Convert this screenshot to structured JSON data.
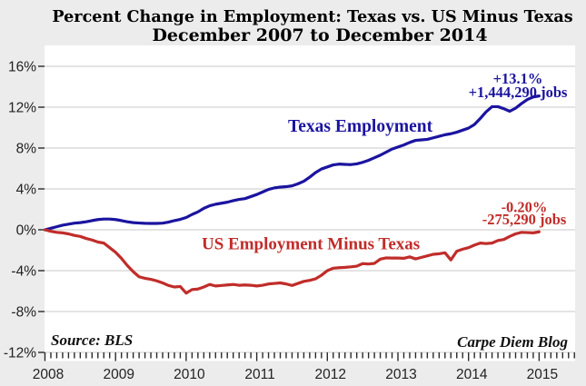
{
  "page": {
    "background": "#ececec",
    "plot_background": "#ffffff"
  },
  "chart_data": {
    "type": "line",
    "title": "Percent Change in Employment: Texas vs. US Minus Texas",
    "subtitle": "December 2007 to December 2014",
    "x_tick_labels": [
      "2008",
      "2009",
      "2010",
      "2011",
      "2012",
      "2013",
      "2014",
      "2015"
    ],
    "y_tick_labels": [
      "16%",
      "12%",
      "8%",
      "4%",
      "0%",
      "-4%",
      "-8%",
      "-12%"
    ],
    "y_tick_values": [
      16,
      12,
      8,
      4,
      0,
      -4,
      -8,
      -12
    ],
    "ylim": [
      -12,
      16
    ],
    "x_months_total": 85,
    "months_per_year_tick": 12,
    "minor_ticks_total": 91,
    "grid_color": "#c8c8c8",
    "tick_color": "#2a2a2a",
    "axis_label_color": "#222222",
    "title_color": "#000000",
    "footer_color": "#111111",
    "series": [
      {
        "name": "Texas Employment",
        "color": "#1b149f",
        "end_label_pct": "+13.1%",
        "end_label_jobs": "+1,444,290 jobs",
        "values": [
          0.0,
          0.15,
          0.3,
          0.45,
          0.55,
          0.65,
          0.7,
          0.78,
          0.9,
          1.0,
          1.05,
          1.05,
          1.0,
          0.9,
          0.78,
          0.7,
          0.66,
          0.63,
          0.62,
          0.62,
          0.65,
          0.75,
          0.9,
          1.02,
          1.2,
          1.5,
          1.75,
          2.1,
          2.35,
          2.5,
          2.6,
          2.7,
          2.85,
          2.97,
          3.05,
          3.25,
          3.45,
          3.7,
          3.95,
          4.1,
          4.18,
          4.22,
          4.3,
          4.5,
          4.75,
          5.15,
          5.6,
          5.95,
          6.15,
          6.35,
          6.43,
          6.4,
          6.38,
          6.45,
          6.6,
          6.8,
          7.05,
          7.3,
          7.6,
          7.9,
          8.1,
          8.3,
          8.55,
          8.75,
          8.8,
          8.85,
          9.0,
          9.15,
          9.3,
          9.4,
          9.55,
          9.75,
          9.95,
          10.3,
          10.9,
          11.55,
          12.05,
          12.05,
          11.85,
          11.6,
          11.9,
          12.35,
          12.75,
          13.0,
          13.1
        ]
      },
      {
        "name": "US Employment Minus Texas",
        "color": "#c02d2a",
        "end_label_pct": "-0.20%",
        "end_label_jobs": "-275,290 jobs",
        "values": [
          0.0,
          -0.15,
          -0.25,
          -0.3,
          -0.4,
          -0.55,
          -0.65,
          -0.85,
          -1.0,
          -1.2,
          -1.3,
          -1.75,
          -2.2,
          -2.8,
          -3.5,
          -4.1,
          -4.6,
          -4.75,
          -4.85,
          -5.0,
          -5.2,
          -5.45,
          -5.6,
          -5.55,
          -6.2,
          -5.85,
          -5.8,
          -5.6,
          -5.35,
          -5.5,
          -5.45,
          -5.4,
          -5.35,
          -5.43,
          -5.4,
          -5.43,
          -5.5,
          -5.43,
          -5.3,
          -5.25,
          -5.2,
          -5.3,
          -5.45,
          -5.25,
          -5.05,
          -4.95,
          -4.8,
          -4.45,
          -4.0,
          -3.76,
          -3.71,
          -3.68,
          -3.63,
          -3.56,
          -3.31,
          -3.35,
          -3.29,
          -2.87,
          -2.75,
          -2.77,
          -2.77,
          -2.79,
          -2.65,
          -2.85,
          -2.7,
          -2.55,
          -2.4,
          -2.35,
          -2.25,
          -2.95,
          -2.1,
          -1.9,
          -1.75,
          -1.5,
          -1.3,
          -1.35,
          -1.3,
          -1.05,
          -0.95,
          -0.65,
          -0.4,
          -0.25,
          -0.27,
          -0.3,
          -0.2
        ]
      }
    ],
    "footer_left": "Source: BLS",
    "footer_right": "Carpe Diem Blog"
  }
}
